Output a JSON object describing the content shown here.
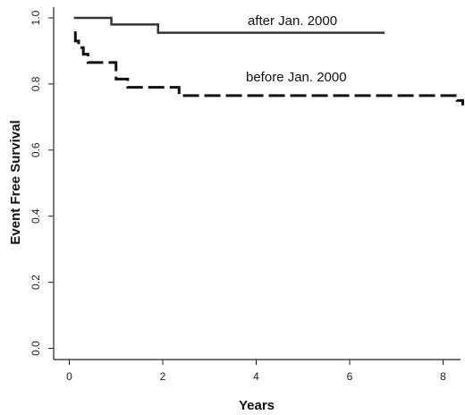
{
  "chart_data": {
    "type": "line",
    "subtype": "kaplan-meier step curves",
    "title": "",
    "xlabel": "Years",
    "ylabel": "Event Free Survival",
    "xlim": [
      0,
      8.4
    ],
    "ylim": [
      0.0,
      1.0
    ],
    "x_ticks": [
      0,
      2,
      4,
      6,
      8
    ],
    "x_tick_labels": [
      "0",
      "2",
      "4",
      "6",
      "8"
    ],
    "y_ticks": [
      0.0,
      0.2,
      0.4,
      0.6,
      0.8,
      1.0
    ],
    "y_tick_labels": [
      "0.0",
      "0.2",
      "0.4",
      "0.6",
      "0.8",
      "1.0"
    ],
    "grid": false,
    "legend": "none (series labeled directly on plot)",
    "series": [
      {
        "name": "after Jan. 2000",
        "line_style": "solid",
        "color": "#333333",
        "steps": [
          [
            0.1,
            1.0
          ],
          [
            0.9,
            0.98
          ],
          [
            1.9,
            0.955
          ],
          [
            6.75,
            0.955
          ]
        ]
      },
      {
        "name": "before Jan. 2000",
        "line_style": "dashed",
        "color": "#111111",
        "steps": [
          [
            0.1,
            0.955
          ],
          [
            0.13,
            0.93
          ],
          [
            0.2,
            0.91
          ],
          [
            0.3,
            0.89
          ],
          [
            0.4,
            0.865
          ],
          [
            1.0,
            0.84
          ],
          [
            1.0,
            0.815
          ],
          [
            1.25,
            0.79
          ],
          [
            2.35,
            0.765
          ],
          [
            8.3,
            0.75
          ],
          [
            8.42,
            0.735
          ]
        ]
      }
    ]
  }
}
